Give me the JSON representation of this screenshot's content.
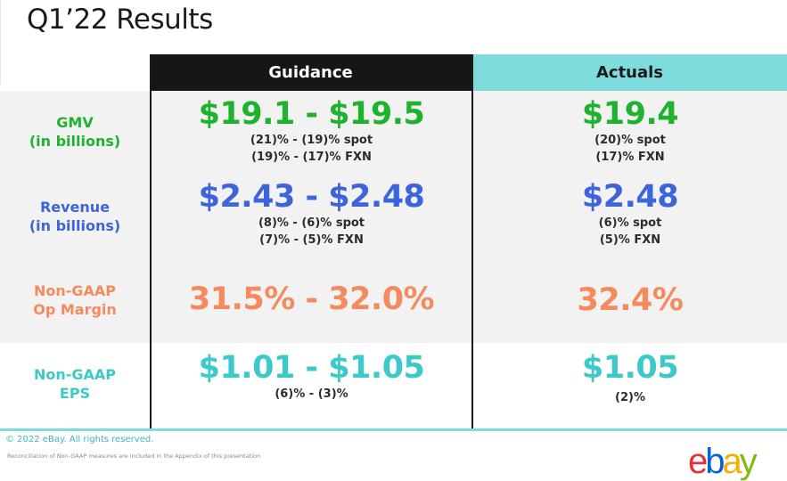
{
  "title": "Q1’22 Results",
  "headers": {
    "guidance": "Guidance",
    "actuals": "Actuals"
  },
  "rows": [
    {
      "label_line1": "GMV",
      "label_line2": "(in billions)",
      "color": "#1db32f",
      "guidance_main": "$19.1 - $19.5",
      "guidance_sub1": "(21)% - (19)% spot",
      "guidance_sub2": "(19)% - (17)% FXN",
      "actual_main": "$19.4",
      "actual_sub1": "(20)% spot",
      "actual_sub2": "(17)% FXN"
    },
    {
      "label_line1": "Revenue",
      "label_line2": "(in billions)",
      "color": "#3d64db",
      "guidance_main": "$2.43 - $2.48",
      "guidance_sub1": "(8)% - (6)% spot",
      "guidance_sub2": "(7)% - (5)% FXN",
      "actual_main": "$2.48",
      "actual_sub1": "(6)% spot",
      "actual_sub2": "(5)% FXN"
    },
    {
      "label_line1": "Non-GAAP",
      "label_line2": "Op Margin",
      "color": "#f58a5e",
      "guidance_main": "31.5% - 32.0%",
      "actual_main": "32.4%"
    },
    {
      "label_line1": "Non-GAAP",
      "label_line2": "EPS",
      "color": "#3cc9c9",
      "guidance_main": "$1.01 - $1.05",
      "guidance_sub1": "(6)% - (3)%",
      "actual_main": "$1.05",
      "actual_sub1": "(2)%"
    }
  ],
  "footer": {
    "copyright": "© 2022 eBay. All rights reserved.",
    "reconciliation_note": "Reconciliation of Non-GAAP measures are included in the Appendix of this presentation"
  },
  "logo": {
    "letters": [
      "e",
      "b",
      "a",
      "y"
    ],
    "colors": [
      "#e53238",
      "#0064d2",
      "#f5af02",
      "#86b817"
    ]
  }
}
